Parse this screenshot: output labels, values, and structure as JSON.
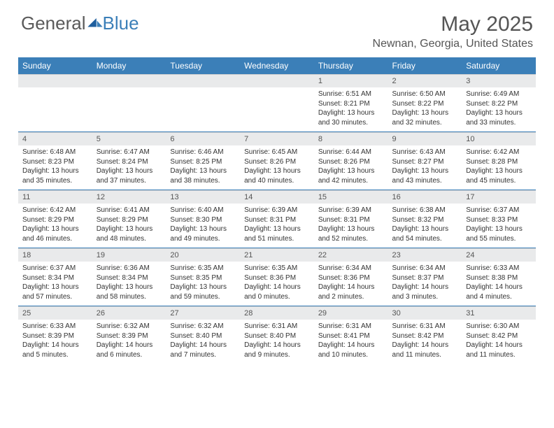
{
  "brand": {
    "part1": "General",
    "part2": "Blue"
  },
  "title": "May 2025",
  "location": "Newnan, Georgia, United States",
  "colors": {
    "header_bg": "#3b7fb8",
    "header_text": "#ffffff",
    "daynum_bg": "#e9eaeb",
    "text": "#333333",
    "page_bg": "#ffffff"
  },
  "day_names": [
    "Sunday",
    "Monday",
    "Tuesday",
    "Wednesday",
    "Thursday",
    "Friday",
    "Saturday"
  ],
  "weeks": [
    [
      null,
      null,
      null,
      null,
      {
        "n": "1",
        "sr": "6:51 AM",
        "ss": "8:21 PM",
        "dl": "13 hours and 30 minutes."
      },
      {
        "n": "2",
        "sr": "6:50 AM",
        "ss": "8:22 PM",
        "dl": "13 hours and 32 minutes."
      },
      {
        "n": "3",
        "sr": "6:49 AM",
        "ss": "8:22 PM",
        "dl": "13 hours and 33 minutes."
      }
    ],
    [
      {
        "n": "4",
        "sr": "6:48 AM",
        "ss": "8:23 PM",
        "dl": "13 hours and 35 minutes."
      },
      {
        "n": "5",
        "sr": "6:47 AM",
        "ss": "8:24 PM",
        "dl": "13 hours and 37 minutes."
      },
      {
        "n": "6",
        "sr": "6:46 AM",
        "ss": "8:25 PM",
        "dl": "13 hours and 38 minutes."
      },
      {
        "n": "7",
        "sr": "6:45 AM",
        "ss": "8:26 PM",
        "dl": "13 hours and 40 minutes."
      },
      {
        "n": "8",
        "sr": "6:44 AM",
        "ss": "8:26 PM",
        "dl": "13 hours and 42 minutes."
      },
      {
        "n": "9",
        "sr": "6:43 AM",
        "ss": "8:27 PM",
        "dl": "13 hours and 43 minutes."
      },
      {
        "n": "10",
        "sr": "6:42 AM",
        "ss": "8:28 PM",
        "dl": "13 hours and 45 minutes."
      }
    ],
    [
      {
        "n": "11",
        "sr": "6:42 AM",
        "ss": "8:29 PM",
        "dl": "13 hours and 46 minutes."
      },
      {
        "n": "12",
        "sr": "6:41 AM",
        "ss": "8:29 PM",
        "dl": "13 hours and 48 minutes."
      },
      {
        "n": "13",
        "sr": "6:40 AM",
        "ss": "8:30 PM",
        "dl": "13 hours and 49 minutes."
      },
      {
        "n": "14",
        "sr": "6:39 AM",
        "ss": "8:31 PM",
        "dl": "13 hours and 51 minutes."
      },
      {
        "n": "15",
        "sr": "6:39 AM",
        "ss": "8:31 PM",
        "dl": "13 hours and 52 minutes."
      },
      {
        "n": "16",
        "sr": "6:38 AM",
        "ss": "8:32 PM",
        "dl": "13 hours and 54 minutes."
      },
      {
        "n": "17",
        "sr": "6:37 AM",
        "ss": "8:33 PM",
        "dl": "13 hours and 55 minutes."
      }
    ],
    [
      {
        "n": "18",
        "sr": "6:37 AM",
        "ss": "8:34 PM",
        "dl": "13 hours and 57 minutes."
      },
      {
        "n": "19",
        "sr": "6:36 AM",
        "ss": "8:34 PM",
        "dl": "13 hours and 58 minutes."
      },
      {
        "n": "20",
        "sr": "6:35 AM",
        "ss": "8:35 PM",
        "dl": "13 hours and 59 minutes."
      },
      {
        "n": "21",
        "sr": "6:35 AM",
        "ss": "8:36 PM",
        "dl": "14 hours and 0 minutes."
      },
      {
        "n": "22",
        "sr": "6:34 AM",
        "ss": "8:36 PM",
        "dl": "14 hours and 2 minutes."
      },
      {
        "n": "23",
        "sr": "6:34 AM",
        "ss": "8:37 PM",
        "dl": "14 hours and 3 minutes."
      },
      {
        "n": "24",
        "sr": "6:33 AM",
        "ss": "8:38 PM",
        "dl": "14 hours and 4 minutes."
      }
    ],
    [
      {
        "n": "25",
        "sr": "6:33 AM",
        "ss": "8:39 PM",
        "dl": "14 hours and 5 minutes."
      },
      {
        "n": "26",
        "sr": "6:32 AM",
        "ss": "8:39 PM",
        "dl": "14 hours and 6 minutes."
      },
      {
        "n": "27",
        "sr": "6:32 AM",
        "ss": "8:40 PM",
        "dl": "14 hours and 7 minutes."
      },
      {
        "n": "28",
        "sr": "6:31 AM",
        "ss": "8:40 PM",
        "dl": "14 hours and 9 minutes."
      },
      {
        "n": "29",
        "sr": "6:31 AM",
        "ss": "8:41 PM",
        "dl": "14 hours and 10 minutes."
      },
      {
        "n": "30",
        "sr": "6:31 AM",
        "ss": "8:42 PM",
        "dl": "14 hours and 11 minutes."
      },
      {
        "n": "31",
        "sr": "6:30 AM",
        "ss": "8:42 PM",
        "dl": "14 hours and 11 minutes."
      }
    ]
  ],
  "labels": {
    "sunrise": "Sunrise: ",
    "sunset": "Sunset: ",
    "daylight": "Daylight: "
  }
}
